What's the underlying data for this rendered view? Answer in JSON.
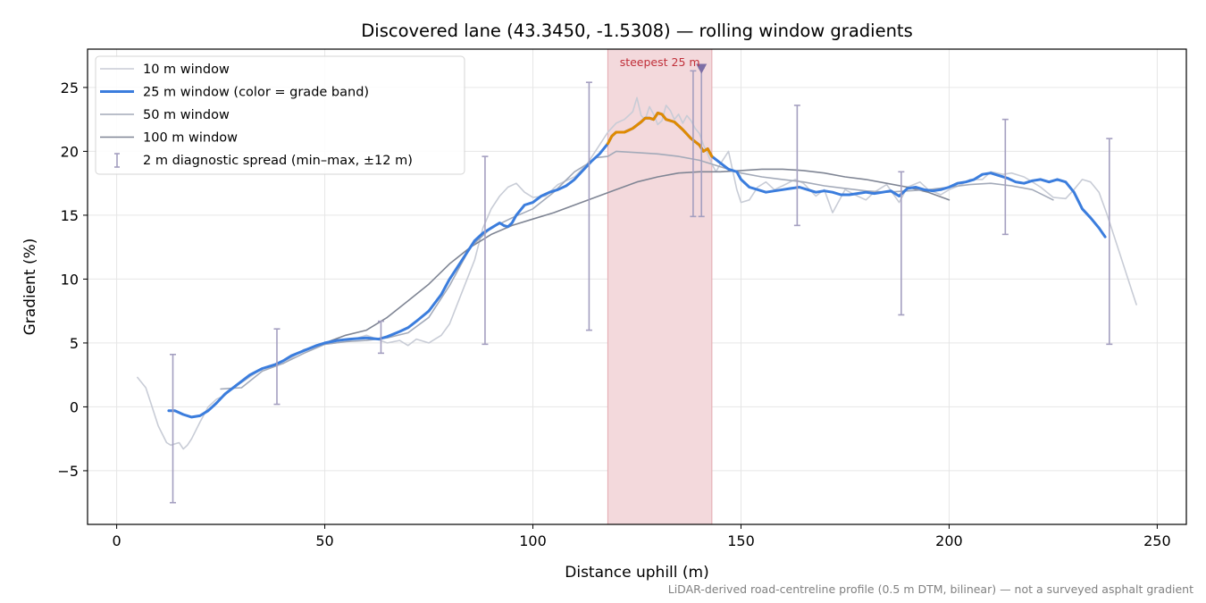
{
  "chart_data": {
    "type": "line",
    "title": "Discovered lane (43.3450, -1.5308) — rolling window gradients",
    "xlabel": "Distance uphill (m)",
    "ylabel": "Gradient (%)",
    "xlim": [
      -7,
      257
    ],
    "ylim": [
      -9.2,
      28
    ],
    "xticks": [
      0,
      50,
      100,
      150,
      200,
      250
    ],
    "yticks": [
      -5,
      0,
      5,
      10,
      15,
      20,
      25
    ],
    "ytick_labels": [
      "−5",
      "0",
      "5",
      "10",
      "15",
      "20",
      "25"
    ],
    "grid": true,
    "legend_position": "upper-left",
    "footnote": "LiDAR-derived road-centreline profile (0.5 m DTM, bilinear) — not a surveyed asphalt gradient",
    "highlight": {
      "x_start": 118,
      "x_end": 143,
      "label": "steepest 25 m",
      "marker_x": 140.5,
      "marker_y": 26.5,
      "color": "#e8b4b8"
    },
    "series": [
      {
        "name": "10 m window",
        "color": "#c8ccd6",
        "x": [
          5,
          7,
          8,
          10,
          12,
          13,
          14,
          15,
          16,
          17,
          18,
          20,
          22,
          24,
          26,
          28,
          30,
          35,
          40,
          45,
          50,
          55,
          60,
          65,
          68,
          70,
          72,
          75,
          78,
          80,
          83,
          86,
          88,
          90,
          92,
          94,
          96,
          98,
          100,
          103,
          106,
          110,
          113,
          116,
          118,
          120,
          122,
          124,
          125,
          126,
          127,
          128,
          129,
          130,
          131,
          132,
          133,
          134,
          135,
          136,
          137,
          138,
          139,
          140,
          141,
          142,
          143,
          144,
          145,
          147,
          149,
          150,
          152,
          154,
          156,
          158,
          160,
          163,
          165,
          168,
          170,
          172,
          175,
          178,
          180,
          182,
          185,
          188,
          190,
          193,
          195,
          198,
          200,
          203,
          205,
          208,
          210,
          213,
          215,
          218,
          220,
          222,
          225,
          228,
          230,
          232,
          234,
          236,
          238,
          240,
          242,
          244,
          245
        ],
        "values": [
          2.3,
          1.5,
          0.5,
          -1.5,
          -2.8,
          -3.0,
          -2.9,
          -2.8,
          -3.3,
          -3.0,
          -2.5,
          -1.2,
          0.0,
          0.6,
          0.9,
          1.5,
          1.9,
          3.0,
          3.4,
          4.5,
          4.9,
          5.1,
          5.6,
          5.0,
          5.2,
          4.8,
          5.3,
          5.0,
          5.6,
          6.5,
          9.0,
          11.5,
          14.0,
          15.5,
          16.5,
          17.2,
          17.5,
          16.8,
          16.4,
          16.5,
          17.4,
          18.0,
          19.0,
          20.5,
          21.5,
          22.2,
          22.5,
          23.1,
          24.2,
          22.8,
          22.5,
          23.5,
          22.9,
          22.1,
          22.4,
          23.6,
          23.2,
          22.5,
          22.9,
          22.2,
          22.8,
          22.4,
          21.8,
          21.4,
          20.5,
          19.8,
          19.0,
          18.4,
          19.0,
          20.0,
          17.0,
          16.0,
          16.2,
          17.2,
          17.6,
          17.0,
          17.3,
          17.8,
          17.5,
          16.5,
          17.0,
          15.2,
          17.0,
          16.5,
          16.2,
          16.8,
          17.4,
          16.0,
          17.2,
          17.6,
          17.0,
          16.6,
          17.0,
          17.4,
          17.8,
          17.8,
          18.4,
          18.2,
          18.3,
          18.0,
          17.6,
          17.2,
          16.4,
          16.3,
          17.0,
          17.8,
          17.6,
          16.8,
          15.0,
          13.0,
          11.0,
          9.0,
          8.0
        ]
      },
      {
        "name": "25 m window (color = grade band)",
        "color": "#3b7ddd",
        "highlight_color": "#e08a00",
        "highlight_range": [
          118,
          143
        ],
        "x": [
          12.5,
          14,
          16,
          18,
          20,
          22,
          24,
          26,
          28,
          30,
          32,
          35,
          38,
          40,
          42,
          45,
          48,
          50,
          53,
          56,
          60,
          63,
          65,
          68,
          70,
          72,
          75,
          78,
          80,
          82,
          84,
          86,
          88,
          90,
          92,
          93,
          94,
          95,
          96,
          98,
          100,
          102,
          104,
          106,
          108,
          110,
          112,
          114,
          116,
          118,
          119,
          120,
          122,
          124,
          126,
          127,
          128,
          129,
          130,
          131,
          132,
          134,
          136,
          138,
          140,
          141,
          142,
          143,
          145,
          147,
          149,
          150,
          152,
          154,
          156,
          158,
          160,
          162,
          164,
          166,
          168,
          170,
          172,
          174,
          176,
          178,
          180,
          182,
          184,
          186,
          188,
          190,
          192,
          194,
          196,
          198,
          200,
          202,
          204,
          206,
          208,
          210,
          212,
          214,
          216,
          218,
          220,
          222,
          224,
          226,
          228,
          230,
          232,
          234,
          236,
          237.5
        ],
        "values": [
          -0.3,
          -0.3,
          -0.6,
          -0.8,
          -0.7,
          -0.3,
          0.3,
          1.0,
          1.5,
          2.0,
          2.5,
          3.0,
          3.3,
          3.6,
          4.0,
          4.4,
          4.8,
          5.0,
          5.2,
          5.3,
          5.4,
          5.3,
          5.5,
          5.9,
          6.2,
          6.7,
          7.5,
          8.8,
          10.0,
          11.0,
          12.0,
          13.0,
          13.6,
          14.0,
          14.4,
          14.2,
          14.1,
          14.4,
          15.0,
          15.8,
          16.0,
          16.5,
          16.8,
          17.0,
          17.3,
          17.8,
          18.5,
          19.2,
          19.8,
          20.6,
          21.2,
          21.5,
          21.5,
          21.8,
          22.3,
          22.6,
          22.6,
          22.5,
          23.0,
          22.9,
          22.5,
          22.3,
          21.7,
          21.0,
          20.5,
          20.0,
          20.2,
          19.6,
          19.1,
          18.6,
          18.4,
          17.8,
          17.2,
          17.0,
          16.8,
          16.9,
          17.0,
          17.1,
          17.2,
          17.0,
          16.8,
          16.9,
          16.8,
          16.6,
          16.6,
          16.7,
          16.8,
          16.7,
          16.8,
          16.9,
          16.5,
          17.1,
          17.2,
          17.0,
          16.9,
          17.0,
          17.2,
          17.5,
          17.6,
          17.8,
          18.2,
          18.3,
          18.1,
          17.9,
          17.6,
          17.5,
          17.7,
          17.8,
          17.6,
          17.8,
          17.6,
          16.8,
          15.5,
          14.8,
          14.0,
          13.3
        ]
      },
      {
        "name": "50 m window",
        "color": "#a3aab9",
        "x": [
          25,
          30,
          35,
          40,
          45,
          50,
          55,
          60,
          65,
          70,
          75,
          80,
          85,
          90,
          95,
          100,
          105,
          110,
          113,
          115,
          118,
          120,
          125,
          130,
          135,
          140,
          145,
          150,
          155,
          160,
          165,
          170,
          175,
          180,
          185,
          190,
          195,
          200,
          205,
          210,
          215,
          220,
          225
        ],
        "values": [
          1.4,
          1.5,
          2.8,
          3.4,
          4.2,
          4.9,
          5.1,
          5.2,
          5.4,
          5.8,
          7.0,
          9.5,
          12.5,
          14.0,
          14.8,
          15.5,
          16.8,
          18.4,
          19.0,
          19.5,
          19.6,
          20.0,
          19.9,
          19.8,
          19.6,
          19.3,
          18.8,
          18.3,
          18.0,
          17.8,
          17.6,
          17.3,
          17.1,
          16.9,
          16.8,
          16.9,
          17.0,
          17.2,
          17.4,
          17.5,
          17.3,
          17.0,
          16.2
        ]
      },
      {
        "name": "100 m window",
        "color": "#7f8594",
        "x": [
          50,
          55,
          60,
          65,
          70,
          75,
          80,
          85,
          90,
          95,
          100,
          105,
          110,
          115,
          120,
          125,
          130,
          135,
          140,
          145,
          150,
          155,
          160,
          165,
          170,
          175,
          180,
          185,
          190,
          195,
          200
        ],
        "values": [
          5.0,
          5.6,
          6.0,
          7.0,
          8.3,
          9.6,
          11.2,
          12.5,
          13.5,
          14.2,
          14.7,
          15.2,
          15.8,
          16.4,
          17.0,
          17.6,
          18.0,
          18.3,
          18.4,
          18.4,
          18.5,
          18.6,
          18.6,
          18.5,
          18.3,
          18.0,
          17.8,
          17.5,
          17.2,
          16.8,
          16.2
        ]
      }
    ],
    "error_bars": {
      "name": "2 m diagnostic spread (min–max, ±12 m)",
      "color": "#a49fc0",
      "points": [
        {
          "x": 13.5,
          "low": -7.5,
          "high": 4.1
        },
        {
          "x": 38.5,
          "low": 0.2,
          "high": 6.1
        },
        {
          "x": 63.5,
          "low": 4.2,
          "high": 6.7
        },
        {
          "x": 88.5,
          "low": 4.9,
          "high": 19.6
        },
        {
          "x": 113.5,
          "low": 6.0,
          "high": 25.4
        },
        {
          "x": 138.5,
          "low": 14.9,
          "high": 26.3
        },
        {
          "x": 140.5,
          "low": 14.9,
          "high": 26.5
        },
        {
          "x": 163.5,
          "low": 14.2,
          "high": 23.6
        },
        {
          "x": 188.5,
          "low": 7.2,
          "high": 18.4
        },
        {
          "x": 213.5,
          "low": 13.5,
          "high": 22.5
        },
        {
          "x": 238.5,
          "low": 4.9,
          "high": 21.0
        }
      ]
    }
  }
}
